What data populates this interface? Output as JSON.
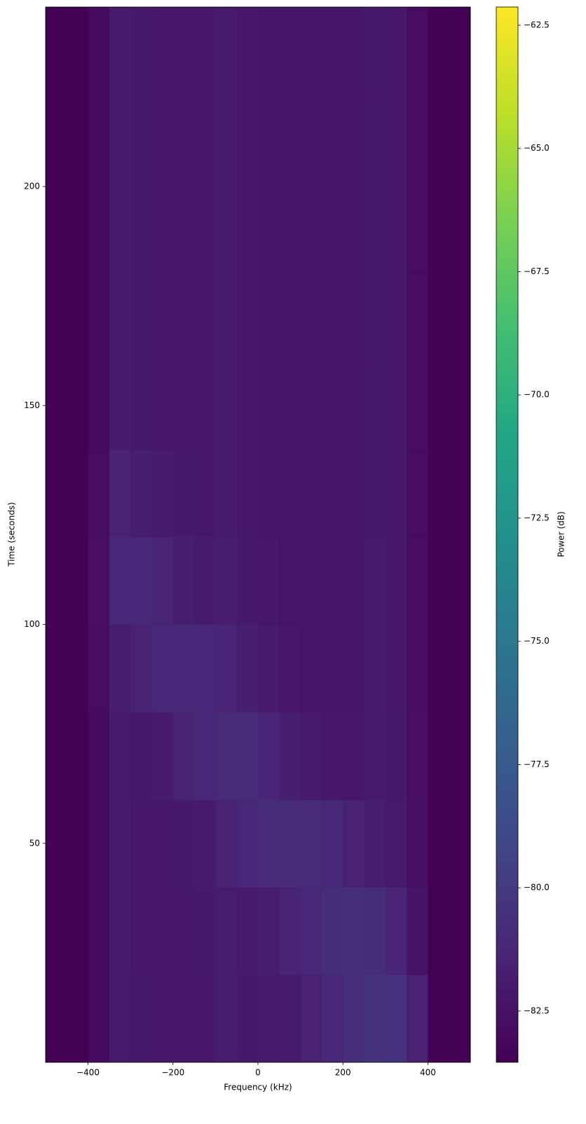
{
  "chart_data": {
    "type": "heatmap",
    "x_label": "Frequency (kHz)",
    "y_label": "Time (seconds)",
    "colorbar_label": "Power (dB)",
    "colormap": "viridis",
    "xlim": [
      -500,
      500
    ],
    "ylim": [
      0,
      241
    ],
    "clim": [
      -83.54,
      -62.13
    ],
    "xticks": [
      {
        "value": -400,
        "label": "−400"
      },
      {
        "value": -200,
        "label": "−200"
      },
      0,
      200,
      400
    ],
    "yticks": [
      50,
      100,
      150,
      200
    ],
    "cticks": [
      {
        "value": -62.5,
        "label": "−62.5"
      },
      {
        "value": -65,
        "label": "−65.0"
      },
      {
        "value": -67.5,
        "label": "−67.5"
      },
      {
        "value": -70,
        "label": "−70.0"
      },
      {
        "value": -72.5,
        "label": "−72.5"
      },
      {
        "value": -75,
        "label": "−75.0"
      },
      {
        "value": -77.5,
        "label": "−77.5"
      },
      {
        "value": -80,
        "label": "−80.0"
      },
      {
        "value": -82.5,
        "label": "−82.5"
      }
    ],
    "x_edges": [
      -500,
      -450,
      -400,
      -350,
      -300,
      -250,
      -200,
      -150,
      -100,
      -50,
      0,
      50,
      100,
      150,
      200,
      250,
      300,
      350,
      400,
      450,
      500
    ],
    "y_edges": [
      0,
      20,
      40,
      60,
      80,
      100,
      120,
      140,
      160,
      180,
      200,
      220,
      241
    ],
    "z": [
      [
        -83.5,
        -83.5,
        -82.9,
        -82.0,
        -82.1,
        -82.2,
        -82.2,
        -82.2,
        -81.8,
        -82.1,
        -82.0,
        -81.9,
        -81.6,
        -81.2,
        -80.7,
        -80.4,
        -80.5,
        -81.6,
        -83.5,
        -83.5
      ],
      [
        -83.5,
        -83.5,
        -82.9,
        -82.0,
        -82.2,
        -82.2,
        -82.2,
        -82.1,
        -81.8,
        -82.0,
        -81.8,
        -81.5,
        -81.1,
        -80.8,
        -80.7,
        -80.8,
        -81.3,
        -82.4,
        -83.5,
        -83.5
      ],
      [
        -83.5,
        -83.5,
        -82.9,
        -82.0,
        -82.2,
        -82.2,
        -82.1,
        -81.9,
        -81.5,
        -81.2,
        -81.0,
        -80.9,
        -81.0,
        -81.2,
        -81.5,
        -81.8,
        -82.0,
        -82.6,
        -83.5,
        -83.5
      ],
      [
        -83.5,
        -83.5,
        -82.9,
        -82.0,
        -82.1,
        -81.9,
        -81.5,
        -81.1,
        -80.9,
        -81.0,
        -81.3,
        -81.7,
        -82.0,
        -82.2,
        -82.2,
        -82.0,
        -82.1,
        -82.7,
        -83.5,
        -83.5
      ],
      [
        -83.5,
        -83.5,
        -82.8,
        -81.8,
        -81.5,
        -81.2,
        -81.1,
        -81.2,
        -81.3,
        -81.7,
        -82.0,
        -82.2,
        -82.3,
        -82.3,
        -82.3,
        -82.0,
        -82.2,
        -82.8,
        -83.5,
        -83.5
      ],
      [
        -83.5,
        -83.5,
        -82.7,
        -81.2,
        -81.2,
        -81.4,
        -81.7,
        -81.9,
        -81.8,
        -82.1,
        -82.2,
        -82.3,
        -82.3,
        -82.3,
        -82.3,
        -82.0,
        -82.2,
        -82.8,
        -83.5,
        -83.5
      ],
      [
        -83.5,
        -83.5,
        -82.8,
        -81.5,
        -81.7,
        -81.9,
        -82.1,
        -82.2,
        -81.9,
        -82.2,
        -82.3,
        -82.3,
        -82.3,
        -82.3,
        -82.3,
        -82.1,
        -82.2,
        -82.8,
        -83.5,
        -83.5
      ],
      [
        -83.5,
        -83.5,
        -82.9,
        -81.9,
        -82.1,
        -82.2,
        -82.2,
        -82.2,
        -81.9,
        -82.2,
        -82.3,
        -82.3,
        -82.3,
        -82.3,
        -82.3,
        -82.1,
        -82.2,
        -82.8,
        -83.5,
        -83.5
      ],
      [
        -83.5,
        -83.5,
        -82.9,
        -81.9,
        -82.1,
        -82.2,
        -82.2,
        -82.2,
        -81.9,
        -82.2,
        -82.3,
        -82.3,
        -82.3,
        -82.3,
        -82.3,
        -82.1,
        -82.2,
        -82.8,
        -83.5,
        -83.5
      ],
      [
        -83.5,
        -83.5,
        -82.9,
        -81.9,
        -82.1,
        -82.2,
        -82.2,
        -82.2,
        -81.9,
        -82.2,
        -82.3,
        -82.3,
        -82.3,
        -82.3,
        -82.3,
        -82.1,
        -82.2,
        -82.8,
        -83.5,
        -83.5
      ],
      [
        -83.5,
        -83.5,
        -82.9,
        -81.9,
        -82.1,
        -82.2,
        -82.2,
        -82.2,
        -81.9,
        -82.2,
        -82.3,
        -82.3,
        -82.3,
        -82.3,
        -82.3,
        -82.1,
        -82.2,
        -82.8,
        -83.5,
        -83.5
      ],
      [
        -83.5,
        -83.5,
        -82.9,
        -81.9,
        -82.1,
        -82.2,
        -82.2,
        -82.2,
        -81.9,
        -82.2,
        -82.3,
        -82.3,
        -82.3,
        -82.3,
        -82.3,
        -82.1,
        -82.2,
        -82.8,
        -83.5,
        -83.5
      ]
    ]
  }
}
